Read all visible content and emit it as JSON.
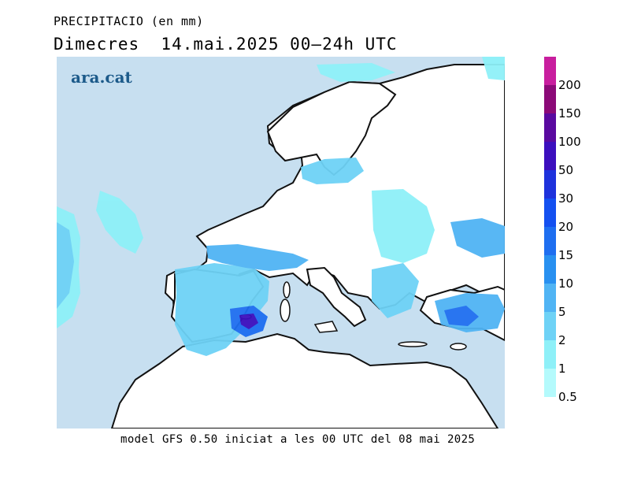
{
  "title": {
    "line1": "PRECIPITACIO (en mm)",
    "line2": "Dimecres  14.mai.2025 00—24h UTC"
  },
  "logo": "ara.cat",
  "footer": "model GFS 0.50 iniciat a les 00 UTC del 08 mai 2025",
  "map": {
    "region": "Europe",
    "colors": {
      "sea": "#c7dff0",
      "land": "#ffffff",
      "coast": "#111111"
    }
  },
  "legend": {
    "items": [
      {
        "label": "200",
        "color": "#c81e9e"
      },
      {
        "label": "150",
        "color": "#8c0a78"
      },
      {
        "label": "100",
        "color": "#5a0aa0"
      },
      {
        "label": "50",
        "color": "#3c0fbe"
      },
      {
        "label": "30",
        "color": "#1e32dc"
      },
      {
        "label": "20",
        "color": "#1450f0"
      },
      {
        "label": "15",
        "color": "#1e6ef0"
      },
      {
        "label": "10",
        "color": "#2890f0"
      },
      {
        "label": "5",
        "color": "#50b4f4"
      },
      {
        "label": "2",
        "color": "#6ed2f6"
      },
      {
        "label": "1",
        "color": "#8ef0f8"
      },
      {
        "label": "0.5",
        "color": "#b4fafc"
      }
    ]
  }
}
